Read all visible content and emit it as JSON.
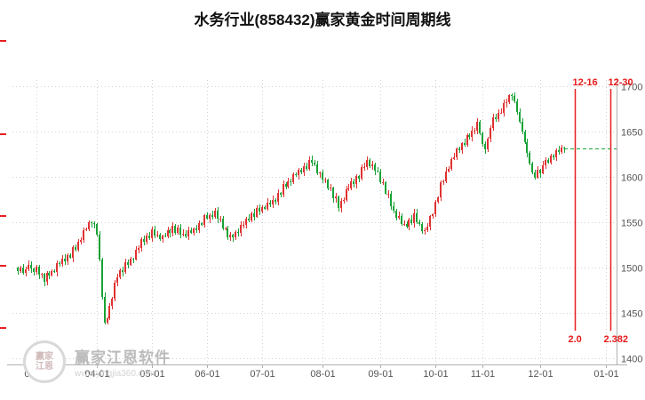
{
  "title": "水务行业(858432)赢家黄金时间周期线",
  "watermark": {
    "name": "赢家江恩软件",
    "url": "www.yingjia360.com",
    "logo_line1": "赢家",
    "logo_line2": "江恩"
  },
  "chart_data": {
    "type": "candlestick",
    "title": "水务行业(858432)赢家黄金时间周期线",
    "y_ticks": [
      1700,
      1650,
      1600,
      1550,
      1500,
      1450,
      1400
    ],
    "y_min": 1400,
    "y_max": 1700,
    "axis_days": 228,
    "x_ticks": [
      {
        "label": "03-01",
        "day": 7
      },
      {
        "label": "04-01",
        "day": 30
      },
      {
        "label": "05-01",
        "day": 51
      },
      {
        "label": "06-01",
        "day": 72
      },
      {
        "label": "07-01",
        "day": 93
      },
      {
        "label": "08-01",
        "day": 116
      },
      {
        "label": "09-01",
        "day": 138
      },
      {
        "label": "10-01",
        "day": 159
      },
      {
        "label": "11-01",
        "day": 177
      },
      {
        "label": "12-01",
        "day": 199
      },
      {
        "label": "01-01",
        "day": 224
      }
    ],
    "first_open": 1500,
    "closes": [
      1496,
      1500,
      1494,
      1498,
      1503,
      1499,
      1495,
      1501,
      1492,
      1493,
      1484,
      1494,
      1491,
      1496,
      1495,
      1505,
      1504,
      1510,
      1507,
      1514,
      1511,
      1523,
      1520,
      1528,
      1530,
      1541,
      1542,
      1550,
      1549,
      1548,
      1536,
      1509,
      1468,
      1439,
      1444,
      1458,
      1466,
      1483,
      1489,
      1497,
      1495,
      1506,
      1503,
      1510,
      1509,
      1520,
      1522,
      1531,
      1528,
      1535,
      1532,
      1542,
      1535,
      1536,
      1531,
      1535,
      1534,
      1541,
      1538,
      1546,
      1538,
      1544,
      1536,
      1537,
      1534,
      1541,
      1538,
      1543,
      1541,
      1549,
      1547,
      1558,
      1554,
      1558,
      1556,
      1563,
      1554,
      1554,
      1543,
      1543,
      1533,
      1536,
      1533,
      1539,
      1538,
      1547,
      1547,
      1554,
      1552,
      1560,
      1556,
      1566,
      1562,
      1567,
      1565,
      1572,
      1570,
      1575,
      1573,
      1582,
      1580,
      1592,
      1589,
      1595,
      1594,
      1603,
      1602,
      1608,
      1605,
      1612,
      1609,
      1619,
      1616,
      1614,
      1604,
      1605,
      1597,
      1597,
      1587,
      1588,
      1576,
      1578,
      1566,
      1574,
      1575,
      1586,
      1587,
      1595,
      1592,
      1601,
      1598,
      1611,
      1611,
      1619,
      1612,
      1614,
      1607,
      1606,
      1594,
      1594,
      1581,
      1581,
      1568,
      1563,
      1555,
      1557,
      1548,
      1548,
      1545,
      1553,
      1549,
      1560,
      1550,
      1548,
      1540,
      1541,
      1545,
      1557,
      1559,
      1573,
      1577,
      1594,
      1595,
      1606,
      1609,
      1620,
      1622,
      1631,
      1629,
      1637,
      1635,
      1646,
      1644,
      1651,
      1651,
      1661,
      1648,
      1636,
      1630,
      1642,
      1654,
      1666,
      1664,
      1671,
      1671,
      1681,
      1682,
      1690,
      1689,
      1683,
      1672,
      1661,
      1650,
      1638,
      1626,
      1615,
      1605,
      1599,
      1608,
      1604,
      1613,
      1619,
      1616,
      1624,
      1622,
      1629,
      1627,
      1632,
      1631
    ],
    "wick_seed": 7,
    "last_price": 1631,
    "cycle_markers": [
      {
        "date": "12-16",
        "ratio": "2.0",
        "day": 212
      },
      {
        "date": "12-30",
        "ratio": "2.382",
        "day": 225.5
      }
    ],
    "left_tick_ys": [
      45,
      150,
      242,
      298,
      368
    ],
    "up_color": "#e03131",
    "down_color": "#18a236",
    "last_price_color": "#18a236",
    "cycle_marker_color": "#e81f1f",
    "grid_color": "#d2d2d2",
    "axis_color": "#b0b0b0",
    "label_color": "#555555"
  }
}
